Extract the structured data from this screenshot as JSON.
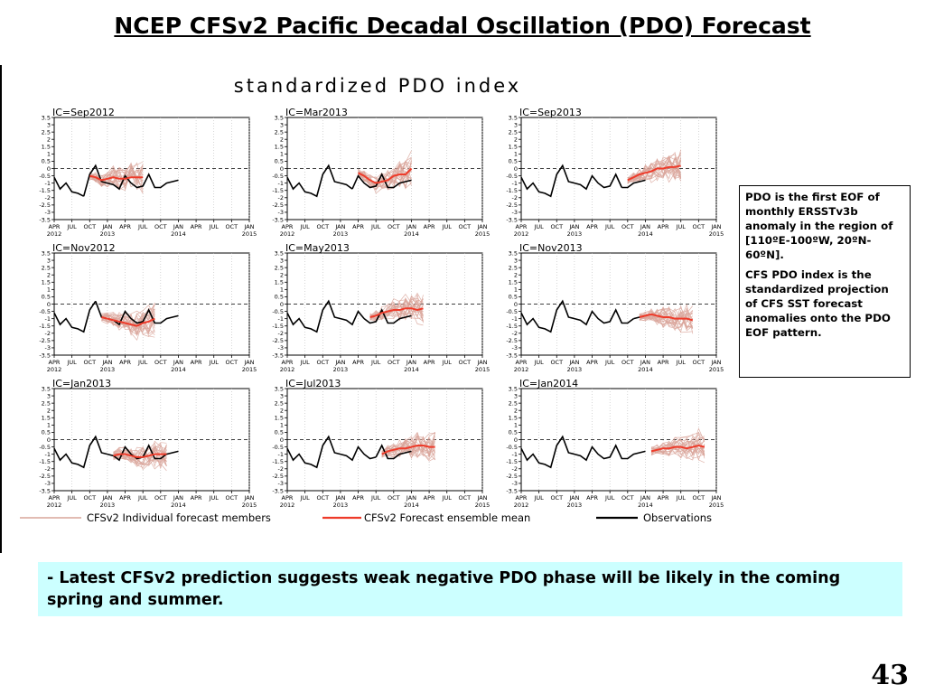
{
  "slide": {
    "title": "NCEP CFSv2 Pacific Decadal Oscillation (PDO) Forecast",
    "page_number": "43"
  },
  "info": {
    "para1": "PDO  is the first EOF of monthly ERSSTv3b anomaly  in the region of [110ºE-100ºW, 20ºN-60ºN].",
    "para2": "CFS PDO index  is  the standardized projection of CFS SST forecast anomalies onto the PDO EOF pattern."
  },
  "summary": {
    "text": "- Latest CFSv2 prediction suggests weak negative PDO phase will be likely in the coming spring and summer."
  },
  "colors": {
    "members": "#d9a59a",
    "ensemble_mean": "#ee3b2a",
    "observations": "#000000",
    "summary_bg": "#ccffff"
  },
  "chart_data": {
    "type": "line",
    "title": "standardized PDO index",
    "ylim": [
      -3.5,
      3.5
    ],
    "y_ticks": [
      "3.5",
      "3",
      "2.5",
      "2",
      "1.5",
      "1",
      "0.5",
      "0",
      "-0.5",
      "-1",
      "-1.5",
      "-2",
      "-2.5",
      "-3",
      "-3.5"
    ],
    "x_ticks": [
      "APR",
      "JUL",
      "OCT",
      "JAN",
      "APR",
      "JUL",
      "OCT",
      "JAN",
      "APR",
      "JUL",
      "OCT",
      "JAN"
    ],
    "year_labels": [
      "2012",
      "2013",
      "2014",
      "2015"
    ],
    "x_range": [
      "2012-04",
      "2015-01"
    ],
    "zero_line": "dashed",
    "legend": {
      "placement": "bottom",
      "entries": [
        {
          "label": "CFSv2 Individual forecast members",
          "color": "#d9a59a"
        },
        {
          "label": "CFSv2 Forecast ensemble mean",
          "color": "#ee3b2a"
        },
        {
          "label": "Observations",
          "color": "#000000"
        }
      ]
    },
    "observations": {
      "x": [
        "2012-04",
        "2012-05",
        "2012-06",
        "2012-07",
        "2012-08",
        "2012-09",
        "2012-10",
        "2012-11",
        "2012-12",
        "2013-01",
        "2013-02",
        "2013-03",
        "2013-04",
        "2013-05",
        "2013-06",
        "2013-07",
        "2013-08",
        "2013-09",
        "2013-10",
        "2013-11",
        "2013-12",
        "2014-01"
      ],
      "values": [
        -0.6,
        -1.4,
        -1.0,
        -1.6,
        -1.7,
        -1.9,
        -0.4,
        0.2,
        -0.9,
        -1.0,
        -1.1,
        -1.4,
        -0.5,
        -1.0,
        -1.3,
        -1.2,
        -0.4,
        -1.3,
        -1.3,
        -1.0,
        -0.9,
        -0.8
      ]
    },
    "panels": [
      {
        "label": "IC=Sep2012",
        "start": "2012-10",
        "mean": [
          -0.5,
          -0.6,
          -0.8,
          -0.7,
          -0.6,
          -0.7,
          -0.7,
          -0.6,
          -0.6,
          -0.6
        ]
      },
      {
        "label": "IC=Mar2013",
        "start": "2013-04",
        "mean": [
          -0.3,
          -0.5,
          -0.8,
          -1.0,
          -0.9,
          -0.8,
          -0.5,
          -0.4,
          -0.4,
          0.0
        ]
      },
      {
        "label": "IC=Sep2013",
        "start": "2013-10",
        "mean": [
          -0.8,
          -0.6,
          -0.4,
          -0.3,
          -0.2,
          0.0,
          0.0,
          0.1,
          0.1,
          0.2
        ]
      },
      {
        "label": "IC=Nov2012",
        "start": "2012-12",
        "mean": [
          -0.9,
          -1.0,
          -1.1,
          -1.2,
          -1.3,
          -1.4,
          -1.5,
          -1.3,
          -1.2,
          -1.0
        ]
      },
      {
        "label": "IC=May2013",
        "start": "2013-06",
        "mean": [
          -0.9,
          -0.8,
          -0.6,
          -0.5,
          -0.4,
          -0.4,
          -0.3,
          -0.3,
          -0.4,
          -0.3
        ]
      },
      {
        "label": "IC=Nov2013",
        "start": "2013-12",
        "mean": [
          -0.9,
          -0.8,
          -0.7,
          -0.8,
          -0.9,
          -0.9,
          -1.0,
          -1.0,
          -1.0,
          -1.1
        ]
      },
      {
        "label": "IC=Jan2013",
        "start": "2013-02",
        "mean": [
          -1.1,
          -1.0,
          -1.0,
          -1.1,
          -1.2,
          -1.2,
          -1.1,
          -1.0,
          -1.0,
          -1.0
        ]
      },
      {
        "label": "IC=Jul2013",
        "start": "2013-08",
        "mean": [
          -1.0,
          -0.8,
          -0.7,
          -0.6,
          -0.6,
          -0.5,
          -0.4,
          -0.4,
          -0.5,
          -0.5
        ]
      },
      {
        "label": "IC=Jan2014",
        "start": "2014-02",
        "mean": [
          -0.8,
          -0.7,
          -0.6,
          -0.6,
          -0.5,
          -0.5,
          -0.6,
          -0.5,
          -0.4,
          -0.5
        ]
      }
    ]
  }
}
